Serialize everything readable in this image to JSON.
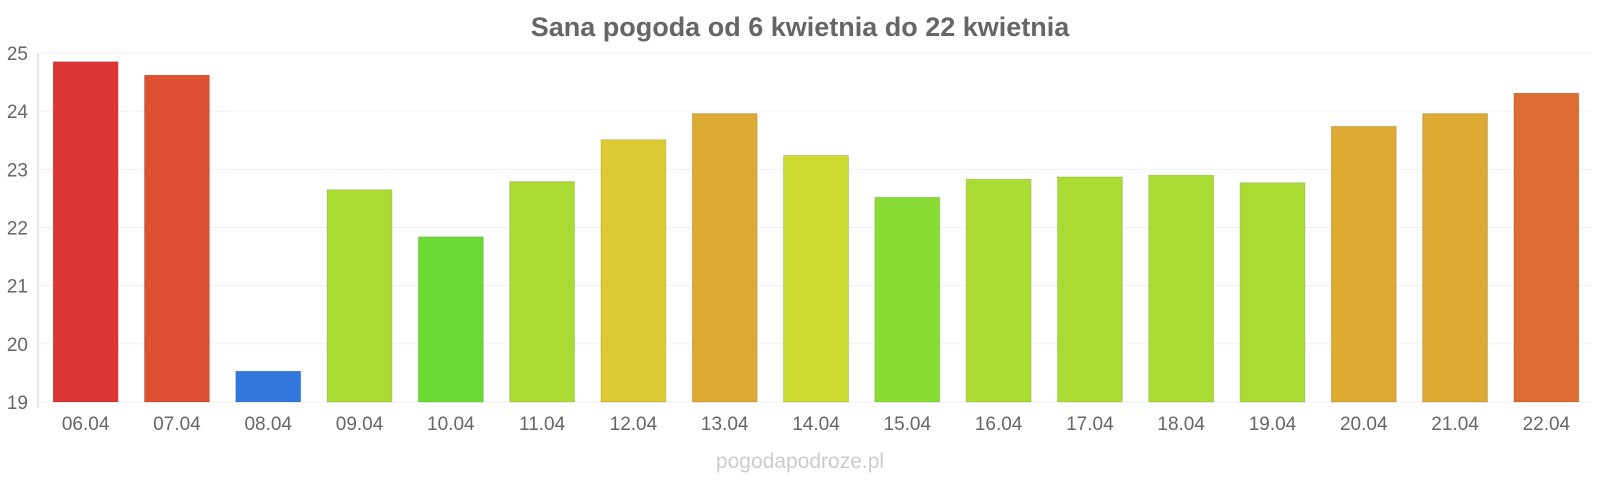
{
  "chart_data": {
    "type": "bar",
    "title": "Sana pogoda od 6 kwietnia do 22 kwietnia",
    "xlabel": "",
    "ylabel": "",
    "categories": [
      "06.04",
      "07.04",
      "08.04",
      "09.04",
      "10.04",
      "11.04",
      "12.04",
      "13.04",
      "14.04",
      "15.04",
      "16.04",
      "17.04",
      "18.04",
      "19.04",
      "20.04",
      "21.04",
      "22.04"
    ],
    "values": [
      24.85,
      24.62,
      19.53,
      22.65,
      21.84,
      22.79,
      23.51,
      23.96,
      23.24,
      22.52,
      22.83,
      22.87,
      22.9,
      22.77,
      23.74,
      23.96,
      24.31
    ],
    "colors": [
      "#dc3535",
      "#dd5032",
      "#3378dc",
      "#abdc33",
      "#6cdb33",
      "#abdc33",
      "#dcca33",
      "#dca933",
      "#ccdc33",
      "#89dc33",
      "#abdc33",
      "#abdc33",
      "#abdc33",
      "#abdc33",
      "#dca933",
      "#dca933",
      "#dd6d33"
    ],
    "ylim": [
      19,
      25
    ],
    "yticks": [
      "19",
      "20",
      "21",
      "22",
      "23",
      "24",
      "25"
    ],
    "grid": true,
    "legend": "none"
  },
  "watermark": "pogodapodroze.pl"
}
